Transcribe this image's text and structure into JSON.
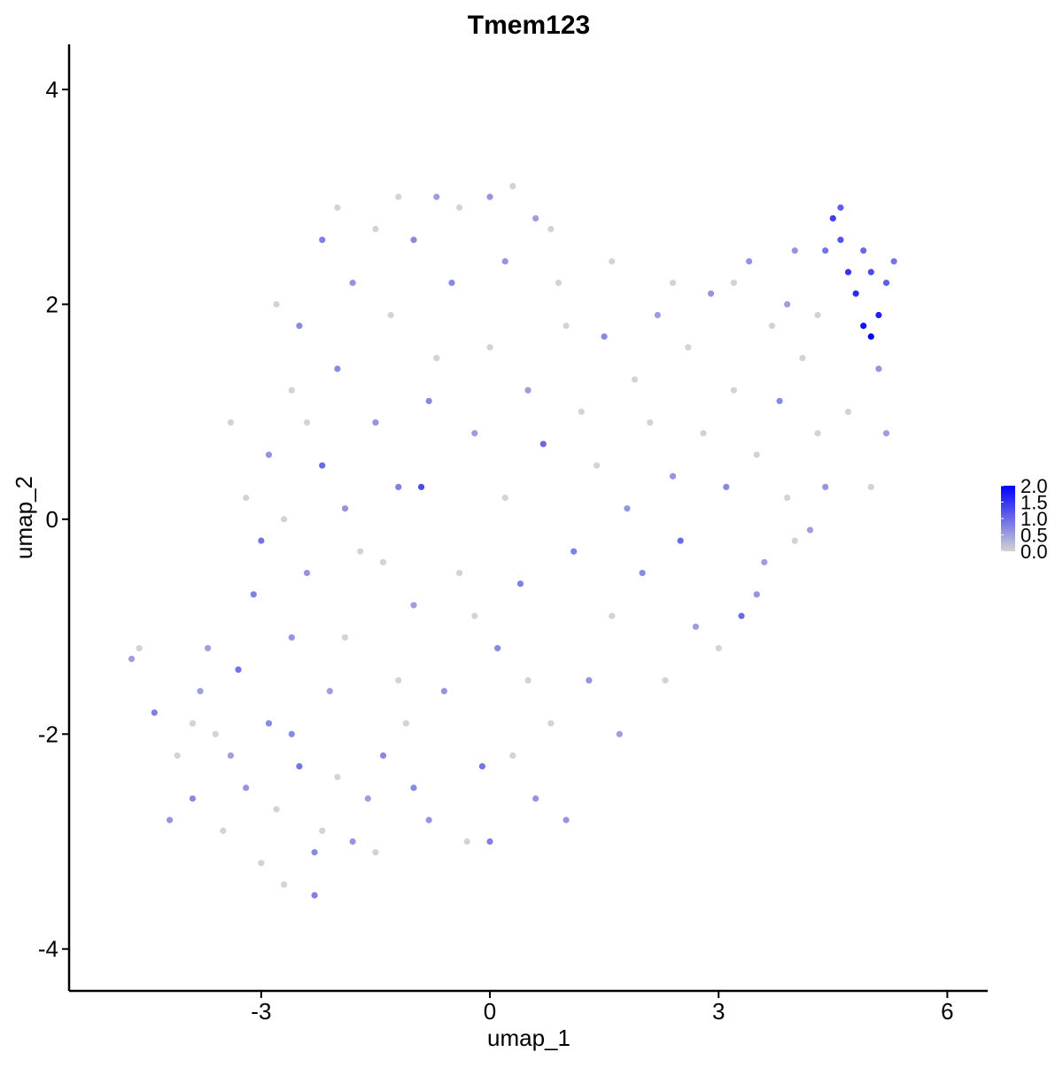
{
  "chart_data": {
    "type": "scatter",
    "title": "Tmem123",
    "x_label": "umap_1",
    "y_label": "umap_2",
    "xlim": [
      -5.52,
      6.53
    ],
    "ylim": [
      -4.39,
      4.42
    ],
    "xticks": [
      -3,
      0,
      3,
      6
    ],
    "yticks": [
      -4,
      -2,
      0,
      2,
      4
    ],
    "color_low": "#d3d3d3",
    "color_high": "#0000ff",
    "colorlim": [
      0,
      2
    ],
    "color_ticks": [
      {
        "value": 0,
        "label": "0.0"
      },
      0.5,
      {
        "value": 1,
        "label": "1.0"
      },
      1.5,
      {
        "value": 2,
        "label": "2.0"
      }
    ],
    "x": [
      -4.7,
      -4.6,
      -4.4,
      -4.1,
      -3.9,
      -3.8,
      -3.6,
      -3.5,
      -3.3,
      -3.2,
      -3.0,
      -2.9,
      -2.8,
      -2.7,
      -2.6,
      -2.5,
      -2.3,
      -2.2,
      -2.1,
      -2.0,
      -1.8,
      -1.5,
      -1.4,
      -1.2,
      -3.7,
      -3.1,
      -3.0,
      -3.2,
      -2.9,
      -2.6,
      -2.5,
      -2.2,
      -2.0,
      -1.8,
      -1.5,
      -1.2,
      -1.0,
      -0.7,
      -0.4,
      0.0,
      0.3,
      0.6,
      0.8,
      -2.7,
      -2.4,
      -2.2,
      -2.0,
      -1.7,
      -1.5,
      -1.3,
      -1.2,
      -1.0,
      -0.9,
      -0.7,
      -0.6,
      -0.5,
      -0.4,
      -0.2,
      -0.1,
      0.0,
      0.1,
      0.2,
      0.4,
      0.5,
      0.6,
      0.7,
      0.8,
      0.9,
      1.0,
      1.1,
      1.2,
      1.3,
      1.4,
      1.5,
      1.6,
      1.7,
      1.8,
      1.9,
      2.0,
      2.1,
      2.2,
      2.3,
      2.4,
      2.5,
      2.6,
      2.7,
      2.8,
      2.9,
      3.0,
      3.1,
      3.2,
      3.3,
      3.4,
      3.5,
      3.6,
      3.7,
      3.8,
      3.9,
      4.0,
      4.1,
      4.2,
      4.3,
      4.4,
      4.5,
      4.6,
      4.7,
      4.8,
      4.9,
      5.0,
      5.0,
      5.1,
      5.2,
      5.3,
      4.9,
      4.6,
      5.1,
      5.2,
      4.7,
      4.4,
      5.0,
      4.0,
      3.5,
      -3.4,
      -2.8,
      -2.3,
      -1.9,
      -1.6,
      -1.1,
      -0.8,
      -0.3,
      0.0,
      0.3,
      -4.2,
      -3.9,
      -3.4,
      -2.6,
      -2.4,
      -1.9,
      -1.4,
      -0.8,
      -0.2,
      0.2,
      1.0,
      1.6,
      2.4,
      3.2,
      3.9,
      4.3,
      0.5,
      -1.0
    ],
    "values": [
      -1.3,
      -1.2,
      -1.8,
      -2.2,
      -2.6,
      -1.6,
      -2.0,
      -2.9,
      -1.4,
      -2.5,
      -3.2,
      -1.9,
      -2.7,
      -3.4,
      -1.1,
      -2.3,
      -3.5,
      -2.9,
      -1.6,
      -2.4,
      -3.0,
      -3.1,
      -2.2,
      -1.5,
      -1.2,
      -0.7,
      -0.2,
      0.2,
      0.6,
      1.2,
      1.8,
      2.6,
      2.9,
      2.2,
      2.7,
      3.0,
      2.6,
      3.0,
      2.9,
      3.0,
      3.1,
      2.8,
      2.7,
      0.0,
      -0.5,
      0.5,
      1.4,
      -0.3,
      0.9,
      1.9,
      0.3,
      -0.8,
      0.3,
      1.5,
      -1.6,
      2.2,
      -0.5,
      0.8,
      -2.3,
      1.6,
      -1.2,
      0.2,
      -0.6,
      1.2,
      -2.6,
      0.7,
      -1.9,
      2.2,
      -2.8,
      -0.3,
      1.0,
      -1.5,
      0.5,
      1.7,
      -0.9,
      -2.0,
      0.1,
      1.3,
      -0.5,
      0.9,
      1.9,
      -1.5,
      0.4,
      -0.2,
      1.6,
      -1.0,
      0.8,
      2.1,
      -1.2,
      0.3,
      1.2,
      -0.9,
      2.4,
      0.6,
      -0.4,
      1.8,
      1.1,
      0.2,
      2.5,
      1.5,
      -0.1,
      0.8,
      2.5,
      2.8,
      2.6,
      2.3,
      2.1,
      1.8,
      1.7,
      2.3,
      1.9,
      2.2,
      2.4,
      2.5,
      2.9,
      1.4,
      0.8,
      1.0,
      0.3,
      0.3,
      -0.2,
      -0.7,
      0.9,
      2.0,
      -3.1,
      -1.1,
      -2.6,
      -1.9,
      -2.8,
      -3.0,
      -3.0,
      -2.2,
      -2.8,
      -1.9,
      -2.2,
      -2.0,
      0.9,
      0.1,
      -0.4,
      1.1,
      -0.9,
      2.4,
      1.8,
      2.4,
      2.2,
      2.2,
      2.0,
      1.9,
      -1.5,
      -2.5
    ],
    "color_values": [
      0.5,
      0,
      0.8,
      0,
      0.7,
      0.5,
      0,
      0,
      0.9,
      0.6,
      0,
      0.7,
      0,
      0,
      0.6,
      0.9,
      0.8,
      0,
      0.5,
      0,
      0.6,
      0,
      0.7,
      0,
      0.5,
      0.8,
      0.9,
      0,
      0.6,
      0,
      0.7,
      0.8,
      0,
      0.6,
      0,
      0,
      0.7,
      0.5,
      0,
      0.6,
      0,
      0.5,
      0,
      0,
      0.6,
      1.0,
      0.7,
      0,
      0.6,
      0,
      0.8,
      0.5,
      1.3,
      0,
      0.6,
      0.7,
      0,
      0.5,
      0.9,
      0,
      0.7,
      0,
      0.8,
      0.5,
      0.6,
      1.0,
      0,
      0,
      0.6,
      0.8,
      0,
      0.6,
      0,
      0.7,
      0,
      0.5,
      0.6,
      0,
      0.7,
      0,
      0.5,
      0,
      0.6,
      1.0,
      0,
      0.5,
      0,
      0.6,
      0,
      0.7,
      0,
      1.0,
      0.6,
      0,
      0.5,
      0,
      0.7,
      0,
      0.6,
      0,
      0.5,
      0,
      0.9,
      1.4,
      1.2,
      1.5,
      1.6,
      1.8,
      2.0,
      1.3,
      1.7,
      1.1,
      0.9,
      1.0,
      1.1,
      0.6,
      0.5,
      0,
      0.6,
      0,
      0,
      0.6,
      0,
      0,
      0.7,
      0,
      0.5,
      0,
      0.6,
      0,
      0.8,
      0,
      0.6,
      0,
      0.5,
      0.7,
      0,
      0.6,
      0,
      0.7,
      0,
      0.6,
      0,
      0,
      0,
      0,
      0.5,
      0,
      0,
      0.7
    ]
  }
}
